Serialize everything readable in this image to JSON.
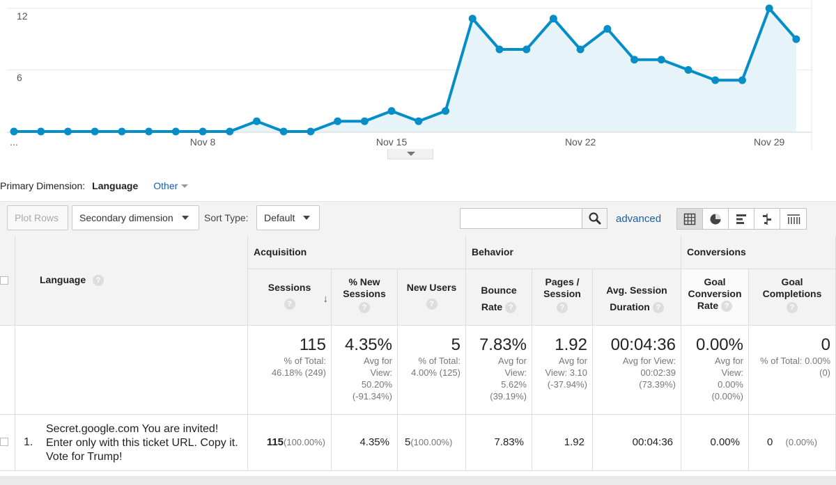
{
  "chart_data": {
    "type": "area",
    "x": [
      "Nov 1",
      "Nov 2",
      "Nov 3",
      "Nov 4",
      "Nov 5",
      "Nov 6",
      "Nov 7",
      "Nov 8",
      "Nov 9",
      "Nov 10",
      "Nov 11",
      "Nov 12",
      "Nov 13",
      "Nov 14",
      "Nov 15",
      "Nov 16",
      "Nov 17",
      "Nov 18",
      "Nov 19",
      "Nov 20",
      "Nov 21",
      "Nov 22",
      "Nov 23",
      "Nov 24",
      "Nov 25",
      "Nov 26",
      "Nov 27",
      "Nov 28",
      "Nov 29",
      "Nov 30"
    ],
    "values": [
      0,
      0,
      0,
      0,
      0,
      0,
      0,
      0,
      0,
      1,
      0,
      0,
      1,
      1,
      2,
      1,
      2,
      11,
      8,
      8,
      11,
      8,
      10,
      7,
      7,
      6,
      5,
      5,
      12,
      9
    ],
    "ylim": [
      0,
      12
    ],
    "y_ticks": [
      "12",
      "6"
    ],
    "x_tick_labels": [
      "...",
      "Nov 8",
      "Nov 15",
      "Nov 22",
      "Nov 29"
    ],
    "grid": true,
    "line_color": "#058dc7",
    "fill_color": "#e6f4fa"
  },
  "primary_dimension": {
    "label": "Primary Dimension:",
    "active": "Language",
    "other": "Other"
  },
  "toolbar": {
    "plot_rows": "Plot Rows",
    "secondary_dimension": "Secondary dimension",
    "sort_type_label": "Sort Type:",
    "sort_type_value": "Default",
    "search_value": "",
    "advanced": "advanced"
  },
  "table": {
    "groups": [
      "Acquisition",
      "Behavior",
      "Conversions"
    ],
    "dimension_header": "Language",
    "columns": [
      "Sessions",
      "% New Sessions",
      "New Users",
      "Bounce Rate",
      "Pages / Session",
      "Avg. Session Duration",
      "Goal Conversion Rate",
      "Goal Completions"
    ],
    "help": "?",
    "totals": [
      {
        "value": "115",
        "sub": "% of Total: 46.18% (249)"
      },
      {
        "value": "4.35%",
        "sub": "Avg for View: 50.20% (-91.34%)"
      },
      {
        "value": "5",
        "sub": "% of Total: 4.00% (125)"
      },
      {
        "value": "7.83%",
        "sub": "Avg for View: 5.62% (39.19%)"
      },
      {
        "value": "1.92",
        "sub": "Avg for View: 3.10 (-37.94%)"
      },
      {
        "value": "00:04:36",
        "sub": "Avg for View: 00:02:39 (73.39%)"
      },
      {
        "value": "0.00%",
        "sub": "Avg for View: 0.00% (0.00%)"
      },
      {
        "value": "0",
        "sub": "% of Total: 0.00% (0)"
      }
    ],
    "rows": [
      {
        "index": "1.",
        "language": "Secret.google.com You are invited! Enter only with this ticket URL. Copy it. Vote for Trump!",
        "sessions": "115",
        "sessions_pct": "(100.00%)",
        "pct_new_sessions": "4.35%",
        "new_users": "5",
        "new_users_pct": "(100.00%)",
        "bounce_rate": "7.83%",
        "pages_per_session": "1.92",
        "avg_session_duration": "00:04:36",
        "goal_conversion_rate": "0.00%",
        "goal_completions": "0",
        "goal_completions_pct": "(0.00%)"
      }
    ]
  },
  "icons": {
    "search": "search-icon",
    "sort": "arrow-down-icon",
    "views": [
      "table-view-icon",
      "pie-view-icon",
      "performance-view-icon",
      "comparison-view-icon",
      "pivot-view-icon"
    ]
  }
}
